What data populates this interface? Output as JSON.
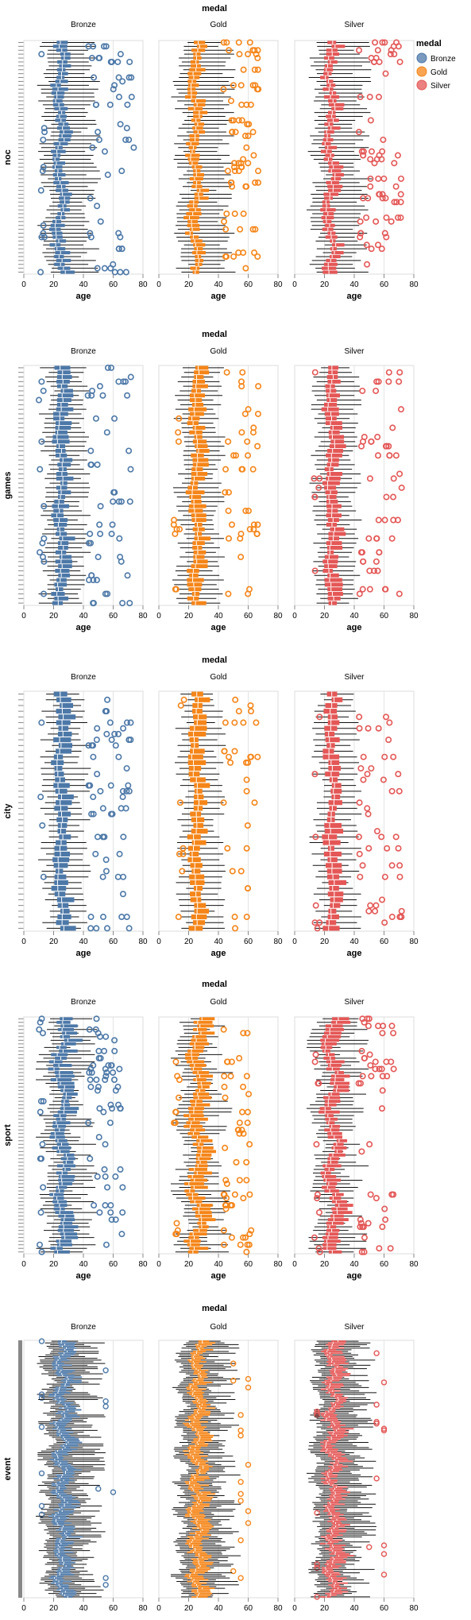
{
  "legend": {
    "title": "medal",
    "items": [
      {
        "label": "Bronze",
        "color": "#4c78a8"
      },
      {
        "label": "Gold",
        "color": "#f58518"
      },
      {
        "label": "Silver",
        "color": "#e45756"
      }
    ]
  },
  "chart_data": [
    {
      "type": "boxplot",
      "column_title": "medal",
      "columns": [
        "Bronze",
        "Gold",
        "Silver"
      ],
      "xlabel": "age",
      "ylabel": "noc",
      "xlim": [
        0,
        80
      ],
      "xticks": [
        "0",
        "20",
        "40",
        "60",
        "80"
      ],
      "grid": true,
      "legend_position": "top-right",
      "category_count": 60,
      "median_range": [
        20,
        28
      ],
      "q1_offset": 3,
      "q3_offset": 4,
      "whisker_upper_range": [
        38,
        52
      ],
      "outliers": {
        "Bronze": [
          50,
          55,
          60,
          65,
          70,
          73,
          45,
          12
        ],
        "Gold": [
          50,
          55,
          60,
          65,
          45
        ],
        "Silver": [
          50,
          55,
          60,
          65,
          70,
          45
        ]
      }
    },
    {
      "type": "boxplot",
      "column_title": "medal",
      "columns": [
        "Bronze",
        "Gold",
        "Silver"
      ],
      "xlabel": "age",
      "ylabel": "games",
      "xlim": [
        0,
        80
      ],
      "xticks": [
        "0",
        "20",
        "40",
        "60",
        "80"
      ],
      "grid": true,
      "category_count": 52,
      "median_range": [
        22,
        27
      ],
      "q1_offset": 3,
      "q3_offset": 5,
      "whisker_upper_range": [
        36,
        45
      ],
      "outliers": {
        "Bronze": [
          45,
          50,
          55,
          60,
          65,
          70,
          12
        ],
        "Gold": [
          45,
          50,
          55,
          60,
          65,
          12
        ],
        "Silver": [
          45,
          50,
          55,
          60,
          65,
          70,
          15
        ]
      }
    },
    {
      "type": "boxplot",
      "column_title": "medal",
      "columns": [
        "Bronze",
        "Gold",
        "Silver"
      ],
      "xlabel": "age",
      "ylabel": "city",
      "xlim": [
        0,
        80
      ],
      "xticks": [
        "0",
        "20",
        "40",
        "60",
        "80"
      ],
      "grid": true,
      "category_count": 42,
      "median_range": [
        22,
        27
      ],
      "q1_offset": 3,
      "q3_offset": 5,
      "whisker_upper_range": [
        36,
        45
      ],
      "outliers": {
        "Bronze": [
          45,
          50,
          55,
          60,
          65,
          70,
          12
        ],
        "Gold": [
          45,
          50,
          55,
          60,
          65,
          15
        ],
        "Silver": [
          45,
          50,
          55,
          60,
          65,
          70,
          15
        ]
      }
    },
    {
      "type": "boxplot",
      "column_title": "medal",
      "columns": [
        "Bronze",
        "Gold",
        "Silver"
      ],
      "xlabel": "age",
      "ylabel": "sport",
      "xlim": [
        0,
        80
      ],
      "xticks": [
        "0",
        "20",
        "40",
        "60",
        "80"
      ],
      "grid": true,
      "category_count": 66,
      "median_range": [
        20,
        30
      ],
      "q1_offset": 3,
      "q3_offset": 6,
      "whisker_upper_range": [
        30,
        50
      ],
      "outliers": {
        "Bronze": [
          45,
          50,
          55,
          60,
          65,
          12
        ],
        "Gold": [
          45,
          50,
          55,
          60,
          12
        ],
        "Silver": [
          45,
          50,
          55,
          60,
          65,
          15
        ]
      }
    },
    {
      "type": "boxplot",
      "column_title": "medal",
      "columns": [
        "Bronze",
        "Gold",
        "Silver"
      ],
      "xlabel": "age",
      "ylabel": "event",
      "xlim": [
        0,
        80
      ],
      "xticks": [
        "0",
        "20",
        "40",
        "60",
        "80"
      ],
      "grid": true,
      "category_count": 150,
      "median_range": [
        20,
        30
      ],
      "q1_offset": 3,
      "q3_offset": 6,
      "whisker_upper_range": [
        32,
        55
      ],
      "outliers": {
        "Bronze": [
          50,
          55,
          60,
          72,
          12
        ],
        "Gold": [
          50,
          55,
          60
        ],
        "Silver": [
          50,
          55,
          60,
          15
        ]
      }
    }
  ]
}
